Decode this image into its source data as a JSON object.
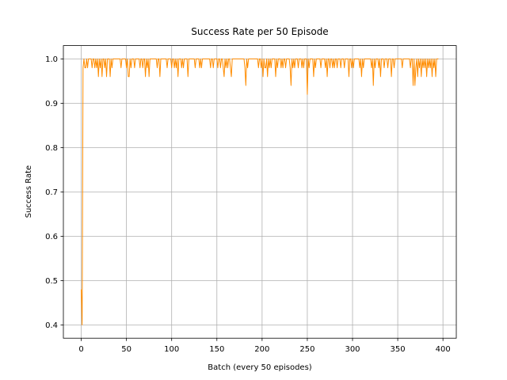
{
  "chart_data": {
    "type": "line",
    "title": "Success Rate per 50 Episode",
    "xlabel": "Batch (every 50 episodes)",
    "ylabel": "Success Rate",
    "grid": true,
    "xlim": [
      -19.75,
      414.75
    ],
    "ylim": [
      0.37,
      1.03
    ],
    "xticks": [
      0,
      50,
      100,
      150,
      200,
      250,
      300,
      350,
      400
    ],
    "yticks": [
      {
        "value": 0.4,
        "label": "0.4"
      },
      {
        "value": 0.5,
        "label": "0.5"
      },
      {
        "value": 0.6,
        "label": "0.6"
      },
      {
        "value": 0.7,
        "label": "0.7"
      },
      {
        "value": 0.8,
        "label": "0.8"
      },
      {
        "value": 0.9,
        "label": "0.9"
      },
      {
        "value": 1.0,
        "label": "1.0"
      }
    ],
    "series": [
      {
        "color": "#ff8c00",
        "x": [
          0,
          1,
          2,
          3,
          4,
          5,
          6,
          7,
          8,
          9,
          10,
          11,
          12,
          13,
          14,
          15,
          16,
          17,
          18,
          19,
          20,
          21,
          22,
          23,
          24,
          25,
          26,
          27,
          28,
          29,
          30,
          31,
          32,
          33,
          34,
          35,
          36,
          37,
          38,
          39,
          40,
          41,
          42,
          43,
          44,
          45,
          46,
          47,
          48,
          49,
          50,
          51,
          52,
          53,
          54,
          55,
          56,
          57,
          58,
          59,
          60,
          61,
          62,
          63,
          64,
          65,
          66,
          67,
          68,
          69,
          70,
          71,
          72,
          73,
          74,
          75,
          76,
          77,
          78,
          79,
          80,
          81,
          82,
          83,
          84,
          85,
          86,
          87,
          88,
          89,
          90,
          91,
          92,
          93,
          94,
          95,
          96,
          97,
          98,
          99,
          100,
          101,
          102,
          103,
          104,
          105,
          106,
          107,
          108,
          109,
          110,
          111,
          112,
          113,
          114,
          115,
          116,
          117,
          118,
          119,
          120,
          121,
          122,
          123,
          124,
          125,
          126,
          127,
          128,
          129,
          130,
          131,
          132,
          133,
          134,
          135,
          136,
          137,
          138,
          139,
          140,
          141,
          142,
          143,
          144,
          145,
          146,
          147,
          148,
          149,
          150,
          151,
          152,
          153,
          154,
          155,
          156,
          157,
          158,
          159,
          160,
          161,
          162,
          163,
          164,
          165,
          166,
          167,
          168,
          169,
          170,
          171,
          172,
          173,
          174,
          175,
          176,
          177,
          178,
          179,
          180,
          181,
          182,
          183,
          184,
          185,
          186,
          187,
          188,
          189,
          190,
          191,
          192,
          193,
          194,
          195,
          196,
          197,
          198,
          199,
          200,
          201,
          202,
          203,
          204,
          205,
          206,
          207,
          208,
          209,
          210,
          211,
          212,
          213,
          214,
          215,
          216,
          217,
          218,
          219,
          220,
          221,
          222,
          223,
          224,
          225,
          226,
          227,
          228,
          229,
          230,
          231,
          232,
          233,
          234,
          235,
          236,
          237,
          238,
          239,
          240,
          241,
          242,
          243,
          244,
          245,
          246,
          247,
          248,
          249,
          250,
          251,
          252,
          253,
          254,
          255,
          256,
          257,
          258,
          259,
          260,
          261,
          262,
          263,
          264,
          265,
          266,
          267,
          268,
          269,
          270,
          271,
          272,
          273,
          274,
          275,
          276,
          277,
          278,
          279,
          280,
          281,
          282,
          283,
          284,
          285,
          286,
          287,
          288,
          289,
          290,
          291,
          292,
          293,
          294,
          295,
          296,
          297,
          298,
          299,
          300,
          301,
          302,
          303,
          304,
          305,
          306,
          307,
          308,
          309,
          310,
          311,
          312,
          313,
          314,
          315,
          316,
          317,
          318,
          319,
          320,
          321,
          322,
          323,
          324,
          325,
          326,
          327,
          328,
          329,
          330,
          331,
          332,
          333,
          334,
          335,
          336,
          337,
          338,
          339,
          340,
          341,
          342,
          343,
          344,
          345,
          346,
          347,
          348,
          349,
          350,
          351,
          352,
          353,
          354,
          355,
          356,
          357,
          358,
          359,
          360,
          361,
          362,
          363,
          364,
          365,
          366,
          367,
          368,
          369,
          370,
          371,
          372,
          373,
          374,
          375,
          376,
          377,
          378,
          379,
          380,
          381,
          382,
          383,
          384,
          385,
          386,
          387,
          388,
          389,
          390,
          391,
          392,
          393,
          394,
          395
        ],
        "values": [
          0.48,
          0.4,
          0.98,
          1,
          0.98,
          0.98,
          1,
          0.98,
          1,
          1,
          1,
          1,
          0.98,
          1,
          1,
          0.98,
          1,
          0.98,
          1,
          0.96,
          1,
          0.98,
          1,
          0.96,
          1,
          1,
          0.98,
          1,
          0.96,
          1,
          1,
          1,
          0.96,
          1,
          0.98,
          1,
          1,
          1,
          1,
          1,
          1,
          1,
          1,
          1,
          0.98,
          1,
          1,
          1,
          1,
          1,
          0.98,
          1,
          0.96,
          0.96,
          1,
          0.98,
          1,
          1,
          1,
          0.98,
          1,
          1,
          1,
          1,
          1,
          0.98,
          1,
          1,
          0.98,
          1,
          1,
          0.96,
          1,
          0.98,
          1,
          0.96,
          1,
          1,
          1,
          1,
          1,
          1,
          1,
          1,
          0.98,
          1,
          1,
          0.96,
          1,
          1,
          1,
          1,
          1,
          1,
          1,
          0.98,
          1,
          1,
          1,
          1,
          0.98,
          1,
          1,
          0.98,
          1,
          0.98,
          1,
          0.96,
          1,
          1,
          1,
          0.98,
          1,
          0.98,
          1,
          1,
          1,
          1,
          0.96,
          1,
          1,
          1,
          1,
          1,
          1,
          1,
          0.98,
          1,
          1,
          1,
          1,
          0.98,
          1,
          0.98,
          1,
          1,
          1,
          1,
          1,
          1,
          1,
          1,
          1,
          0.98,
          1,
          1,
          0.98,
          1,
          1,
          1,
          1,
          0.98,
          1,
          1,
          0.98,
          1,
          1,
          0.98,
          0.96,
          1,
          0.98,
          1,
          0.98,
          1,
          1,
          0.98,
          0.96,
          1,
          1,
          1,
          1,
          1,
          1,
          1,
          1,
          1,
          1,
          1,
          1,
          1,
          1,
          0.98,
          0.94,
          1,
          0.98,
          1,
          1,
          1,
          1,
          1,
          1,
          1,
          1,
          1,
          1,
          1,
          0.98,
          1,
          1,
          0.98,
          1,
          0.96,
          1,
          0.98,
          0.98,
          1,
          0.96,
          1,
          0.98,
          1,
          0.98,
          1,
          1,
          1,
          1,
          0.96,
          1,
          0.98,
          1,
          1,
          1,
          0.98,
          1,
          0.98,
          1,
          1,
          0.98,
          1,
          1,
          1,
          1,
          0.98,
          0.94,
          1,
          0.98,
          1,
          0.98,
          1,
          1,
          1,
          0.98,
          1,
          1,
          1,
          0.98,
          1,
          0.98,
          1,
          1,
          1,
          0.92,
          1,
          0.98,
          1,
          1,
          1,
          1,
          0.96,
          1,
          0.98,
          1,
          1,
          1,
          1,
          1,
          0.98,
          1,
          1,
          1,
          1,
          0.98,
          1,
          0.96,
          1,
          1,
          0.98,
          1,
          1,
          0.98,
          1,
          0.98,
          1,
          1,
          0.98,
          1,
          1,
          1,
          0.98,
          1,
          1,
          1,
          0.98,
          1,
          1,
          1,
          1,
          0.96,
          1,
          1,
          0.98,
          1,
          0.98,
          1,
          1,
          1,
          1,
          1,
          1,
          0.98,
          1,
          0.96,
          1,
          0.98,
          1,
          1,
          1,
          1,
          1,
          1,
          1,
          1,
          0.98,
          1,
          0.94,
          1,
          0.98,
          1,
          1,
          1,
          0.98,
          1,
          0.96,
          1,
          1,
          1,
          0.98,
          1,
          1,
          1,
          0.98,
          1,
          1,
          1,
          0.96,
          1,
          1,
          0.98,
          1,
          1,
          1,
          1,
          1,
          1,
          1,
          1,
          0.98,
          1,
          1,
          1,
          1,
          1,
          1,
          1,
          1,
          0.98,
          1,
          1,
          0.94,
          1,
          0.94,
          0.98,
          1,
          0.96,
          1,
          0.98,
          1,
          0.96,
          1,
          0.98,
          1,
          0.98,
          1,
          0.96,
          1,
          0.98,
          1,
          0.98,
          1,
          0.96,
          1,
          0.98,
          1,
          0.96,
          1,
          1,
          1
        ]
      }
    ]
  }
}
